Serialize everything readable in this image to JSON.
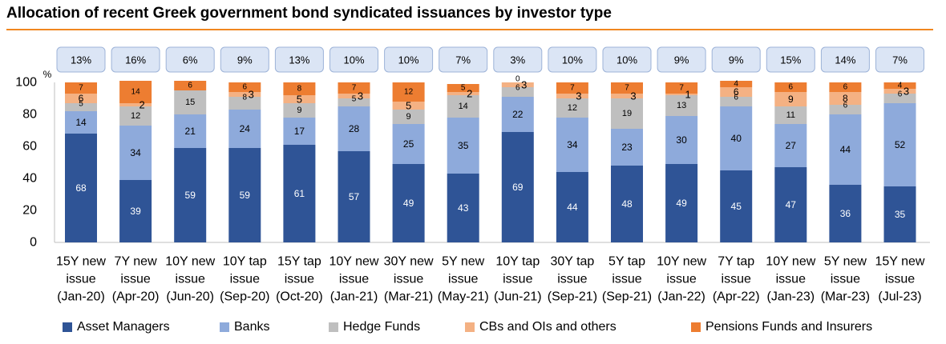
{
  "title": "Allocation of recent Greek government bond syndicated issuances by investor type",
  "colors": {
    "title_rule": "#f0861f",
    "Asset Managers": "#2f5496",
    "Banks": "#8eaadb",
    "Hedge Funds": "#bfbfbf",
    "CBs and OIs and others": "#f4b183",
    "Pensions Funds and Insurers": "#ed7d31",
    "bubble_fill": "#dbe5f5",
    "bubble_stroke": "#9db3d8"
  },
  "chart_data": {
    "type": "bar",
    "stacked": true,
    "title": "Allocation of recent Greek government bond syndicated issuances by investor type",
    "ylabel": "%",
    "ylim": [
      0,
      100
    ],
    "yticks": [
      0,
      20,
      40,
      60,
      80,
      100
    ],
    "grid": false,
    "legend_position": "bottom",
    "categories": [
      [
        "15Y new",
        "issue",
        "(Jan-20)"
      ],
      [
        "7Y new",
        "issue",
        "(Apr-20)"
      ],
      [
        "10Y new",
        "issue",
        "(Jun-20)"
      ],
      [
        "10Y tap",
        "issue",
        "(Sep-20)"
      ],
      [
        "15Y tap",
        "issue",
        "(Oct-20)"
      ],
      [
        "10Y new",
        "issue",
        "(Jan-21)"
      ],
      [
        "30Y new",
        "issue",
        "(Mar-21)"
      ],
      [
        "5Y new",
        "issue",
        "(May-21)"
      ],
      [
        "10Y tap",
        "issue",
        "(Jun-21)"
      ],
      [
        "30Y tap",
        "issue",
        "(Sep-21)"
      ],
      [
        "5Y tap",
        "issue",
        "(Sep-21)"
      ],
      [
        "10Y new",
        "issue",
        "(Jan-22)"
      ],
      [
        "7Y tap",
        "issue",
        "(Apr-22)"
      ],
      [
        "10Y new",
        "issue",
        "(Jan-23)"
      ],
      [
        "5Y new",
        "issue",
        "(Mar-23)"
      ],
      [
        "15Y new",
        "issue",
        "(Jul-23)"
      ]
    ],
    "series": [
      {
        "name": "Asset Managers",
        "values": [
          68,
          39,
          59,
          59,
          61,
          57,
          49,
          43,
          69,
          44,
          48,
          49,
          45,
          47,
          36,
          35
        ]
      },
      {
        "name": "Banks",
        "values": [
          14,
          34,
          21,
          24,
          17,
          28,
          25,
          35,
          22,
          34,
          23,
          30,
          40,
          27,
          44,
          52
        ]
      },
      {
        "name": "Hedge Funds",
        "values": [
          5,
          12,
          15,
          8,
          9,
          5,
          9,
          14,
          6,
          12,
          19,
          13,
          6,
          11,
          6,
          6
        ]
      },
      {
        "name": "CBs and OIs and others",
        "values": [
          6,
          2,
          null,
          3,
          5,
          3,
          5,
          2,
          3,
          3,
          3,
          1,
          6,
          9,
          8,
          3
        ]
      },
      {
        "name": "Pensions Funds and Insurers",
        "values": [
          7,
          14,
          6,
          6,
          8,
          7,
          12,
          5,
          0,
          7,
          7,
          7,
          4,
          6,
          6,
          4
        ]
      }
    ],
    "callouts": [
      "13%",
      "16%",
      "6%",
      "9%",
      "13%",
      "10%",
      "10%",
      "7%",
      "3%",
      "10%",
      "10%",
      "9%",
      "9%",
      "15%",
      "14%",
      "7%"
    ]
  }
}
